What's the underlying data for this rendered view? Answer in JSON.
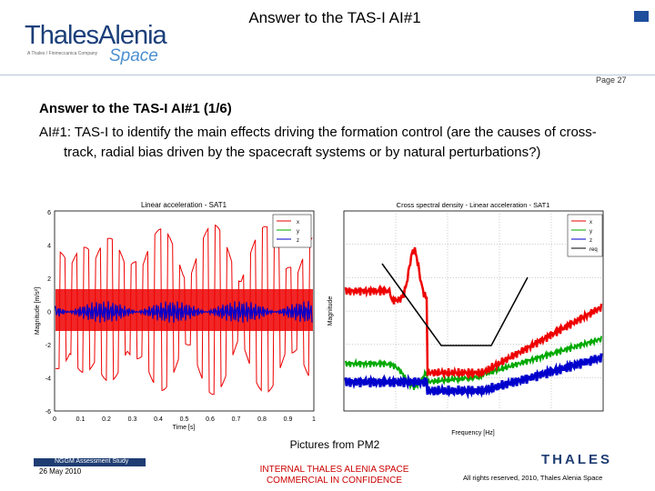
{
  "header": {
    "title": "Answer to the TAS-I AI#1",
    "logo_main": "ThalesAlenia",
    "logo_space": "Space",
    "logo_tagline": "A Thales / Finmeccanica Company",
    "page": "Page 27"
  },
  "body": {
    "heading": "Answer to the TAS-I AI#1 (1/6)",
    "paragraph": "AI#1: TAS-I to identify the main effects driving the formation control (are the causes of cross-track, radial bias driven by the spacecraft systems or by natural perturbations?)"
  },
  "figures": {
    "left": {
      "title": "Linear acceleration - SAT1",
      "xlabel": "Time [s]",
      "ylabel": "Magnitude [m/s²]",
      "xticks": [
        "0",
        "0.1",
        "0.2",
        "0.3",
        "0.4",
        "0.5",
        "0.6",
        "0.7",
        "0.8",
        "0.9",
        "1"
      ],
      "yticks": [
        "6",
        "4",
        "2",
        "0",
        "-2",
        "-4",
        "-6"
      ],
      "legend": [
        "x",
        "y",
        "z"
      ]
    },
    "right": {
      "title": "Cross spectral density - Linear acceleration - SAT1",
      "xlabel": "Frequency [Hz]",
      "ylabel": "Magnitude",
      "legend": [
        "x",
        "y",
        "z",
        "req"
      ]
    },
    "caption": "Pictures from PM2"
  },
  "footer": {
    "study": "NGGM Assessment Study",
    "date": "26 May 2010",
    "confidential": [
      "INTERNAL THALES ALENIA SPACE",
      "COMMERCIAL IN CONFIDENCE"
    ],
    "rights": "All rights reserved, 2010, Thales Alenia Space",
    "logo": "THALES"
  }
}
